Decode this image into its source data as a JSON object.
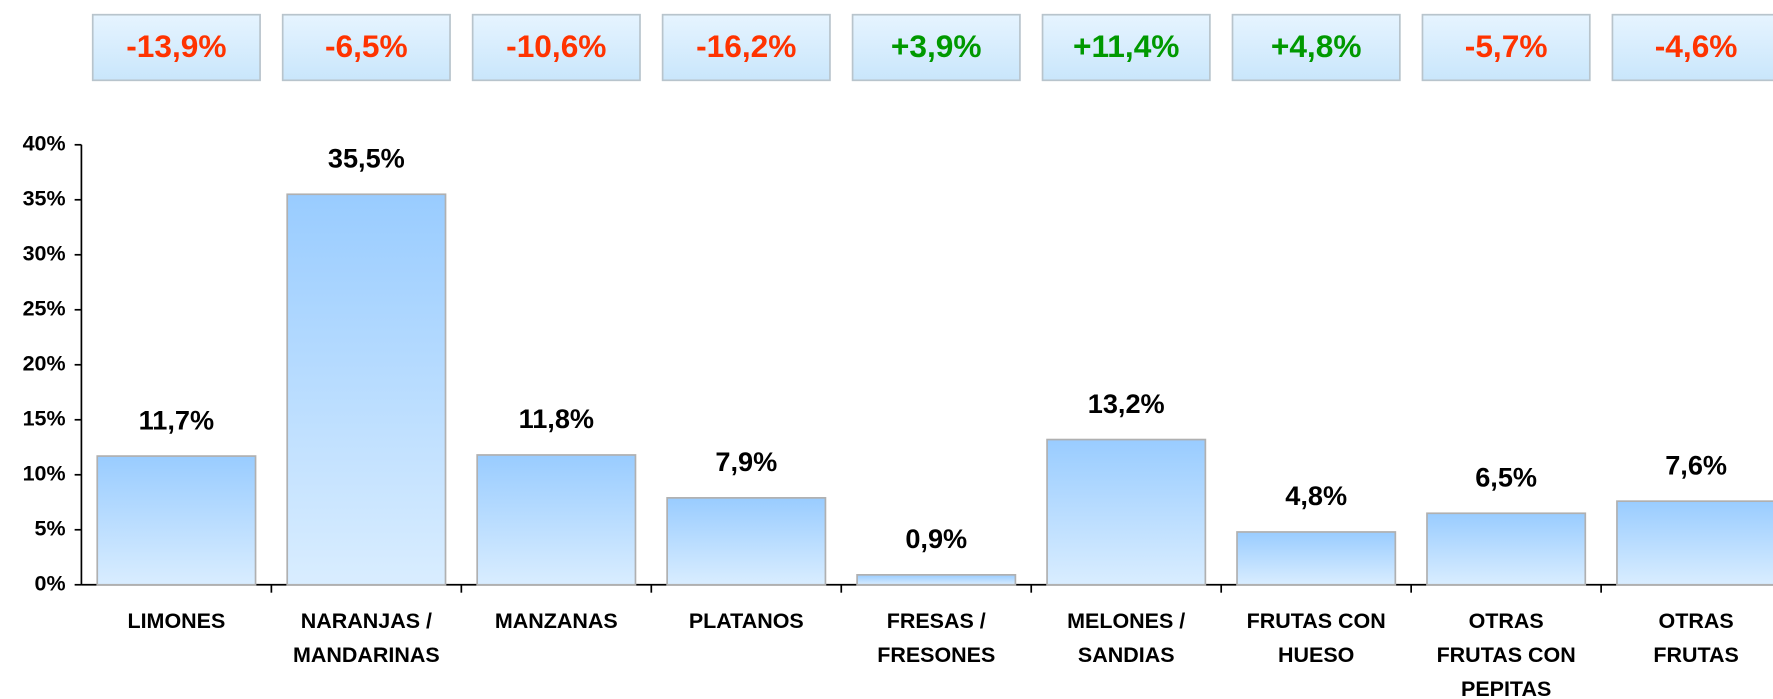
{
  "chart_data": {
    "type": "bar",
    "categories": [
      "LIMONES",
      "NARANJAS /\nMANDARINAS",
      "MANZANAS",
      "PLATANOS",
      "FRESAS /\nFRESONES",
      "MELONES /\nSANDIAS",
      "FRUTAS CON\nHUESO",
      "OTRAS\nFRUTAS CON\nPEPITAS",
      "OTRAS\nFRUTAS"
    ],
    "values": [
      11.7,
      35.5,
      11.8,
      7.9,
      0.9,
      13.2,
      4.8,
      6.5,
      7.6
    ],
    "value_labels": [
      "11,7%",
      "35,5%",
      "11,8%",
      "7,9%",
      "0,9%",
      "13,2%",
      "4,8%",
      "6,5%",
      "7,6%"
    ],
    "color": "#99ccff",
    "ylim": [
      0,
      40
    ],
    "yticks": [
      {
        "value": 0,
        "label": "0%"
      },
      {
        "value": 5,
        "label": "5%"
      },
      {
        "value": 10,
        "label": "10%"
      },
      {
        "value": 15,
        "label": "15%"
      },
      {
        "value": 20,
        "label": "20%"
      },
      {
        "value": 25,
        "label": "25%"
      },
      {
        "value": 30,
        "label": "30%"
      },
      {
        "value": 35,
        "label": "35%"
      },
      {
        "value": 40,
        "label": "40%"
      }
    ],
    "changes": {
      "values": [
        -13.9,
        -6.5,
        -10.6,
        -16.2,
        3.9,
        11.4,
        4.8,
        -5.7,
        -4.6
      ],
      "value_labels": [
        "-13,9%",
        "-6,5%",
        "-10,6%",
        "-16,2%",
        "+3,9%",
        "+11,4%",
        "+4,8%",
        "-5,7%",
        "-4,6%"
      ],
      "positive_color": "#009900",
      "negative_color": "#ff3300"
    }
  }
}
